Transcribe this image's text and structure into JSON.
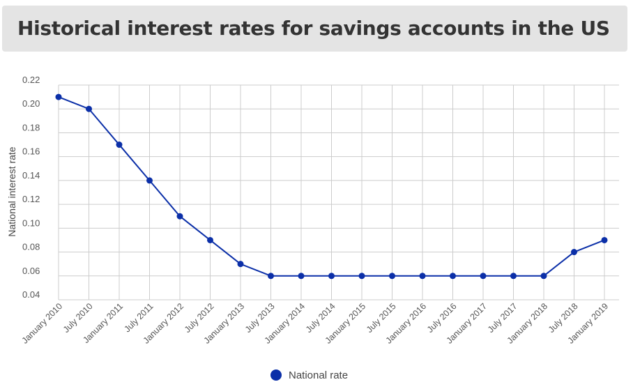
{
  "header": {
    "title": "Historical interest rates for savings accounts in the US"
  },
  "colors": {
    "series": "#0b2fa8",
    "grid": "#cccccc",
    "header_bg": "#e4e4e4"
  },
  "legend": {
    "label": "National rate"
  },
  "chart_data": {
    "type": "line",
    "title": "Historical interest rates for savings accounts in the US",
    "xlabel": "",
    "ylabel": "National interest rate",
    "ylim": [
      0.04,
      0.22
    ],
    "yticks": [
      "0.04",
      "0.06",
      "0.08",
      "0.10",
      "0.12",
      "0.14",
      "0.16",
      "0.18",
      "0.20",
      "0.22"
    ],
    "grid": true,
    "legend_position": "bottom-center",
    "categories": [
      "January 2010",
      "July 2010",
      "January 2011",
      "July 2011",
      "January 2012",
      "July 2012",
      "January 2013",
      "July 2013",
      "January 2014",
      "July 2014",
      "January 2015",
      "July 2015",
      "January 2016",
      "July 2016",
      "January 2017",
      "July 2017",
      "January 2018",
      "July 2018",
      "January 2019"
    ],
    "series": [
      {
        "name": "National rate",
        "values": [
          0.21,
          0.2,
          0.17,
          0.14,
          0.11,
          0.09,
          0.07,
          0.06,
          0.06,
          0.06,
          0.06,
          0.06,
          0.06,
          0.06,
          0.06,
          0.06,
          0.06,
          0.08,
          0.09
        ]
      }
    ]
  }
}
